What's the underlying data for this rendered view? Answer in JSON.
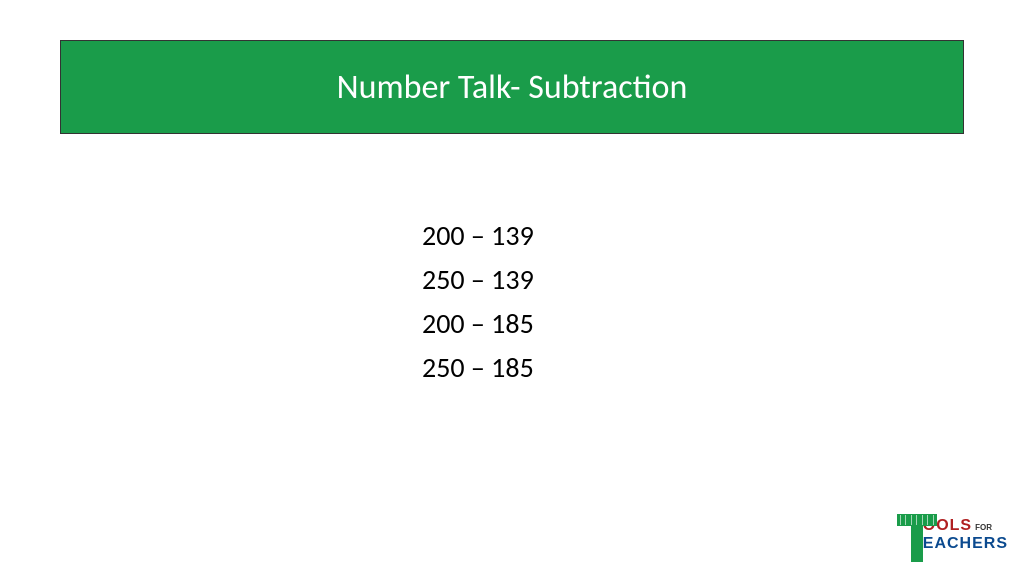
{
  "slide": {
    "title": "Number Talk- Subtraction",
    "title_banner": {
      "background_color": "#1a9c4a",
      "border_color": "#333333",
      "text_color": "#ffffff",
      "font_size": 34
    },
    "problems": [
      "200 – 139",
      "250 – 139",
      "200 – 185",
      "250 – 185"
    ],
    "problem_style": {
      "font_size": 28,
      "text_color": "#000000",
      "line_height": 44
    },
    "background_color": "#ffffff"
  },
  "logo": {
    "t_color": "#1a9c4a",
    "ools_text": "OOLS",
    "ools_color": "#b02021",
    "for_text": "FOR",
    "for_color": "#333333",
    "eachers_text": "EACHERS",
    "eachers_color": "#0b4a8f"
  }
}
